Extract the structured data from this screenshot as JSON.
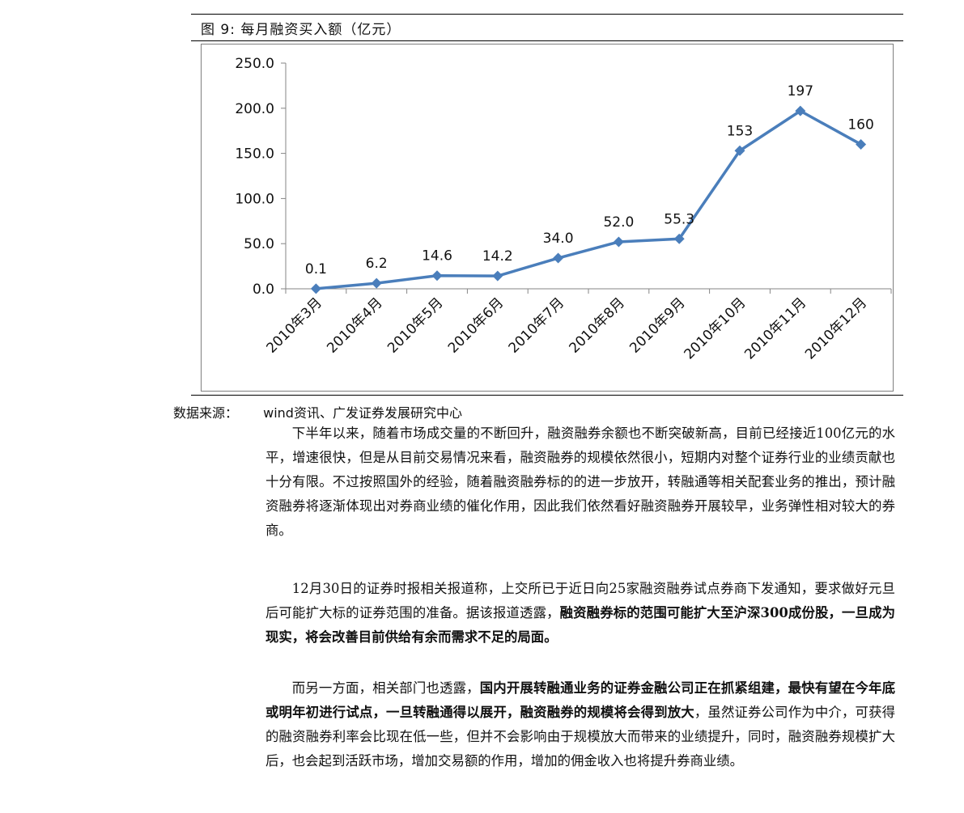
{
  "figure": {
    "title": "图 9:  每月融资买入额（亿元）",
    "source_label": "数据来源：",
    "source_text": "wind资讯、广发证券发展研究中心"
  },
  "chart_data": {
    "type": "line",
    "title": "",
    "xlabel": "",
    "ylabel": "",
    "categories": [
      "2010年3月",
      "2010年4月",
      "2010年5月",
      "2010年6月",
      "2010年7月",
      "2010年8月",
      "2010年9月",
      "2010年10月",
      "2010年11月",
      "2010年12月"
    ],
    "series": [
      {
        "values": [
          0.1,
          6.2,
          14.6,
          14.2,
          34.0,
          52.0,
          55.3,
          153,
          197,
          160
        ],
        "data_labels": [
          "0.1",
          "6.2",
          "14.6",
          "14.2",
          "34.0",
          "52.0",
          "55.3",
          "153",
          "197",
          "160"
        ],
        "color": "#4a7ebb"
      }
    ],
    "ylim": [
      0,
      250
    ],
    "yticks": [
      "0.0",
      "50.0",
      "100.0",
      "150.0",
      "200.0",
      "250.0"
    ],
    "grid": false,
    "legend": "none",
    "marker": "diamond"
  },
  "paragraphs": [
    {
      "segments": [
        {
          "text": "下半年以来，随着市场成交量的不断回升，融资融券余额也不断突破新高，目前已经接近100亿元的水平，增速很快，但是从目前交易情况来看，融资融券的规模依然很小，短期内对整个证券行业的业绩贡献也十分有限。不过按照国外的经验，随着融资融券标的的进一步放开，转融通等相关配套业务的推出，预计融资融券将逐渐体现出对券商业绩的催化作用，因此我们依然看好融资融券开展较早，业务弹性相对较大的券商。",
          "bold": false
        }
      ]
    },
    {
      "segments": [
        {
          "text": "12月30日的证券时报相关报道称，上交所已于近日向25家融资融券试点券商下发通知，要求做好元旦后可能扩大标的证券范围的准备。据该报道透露，",
          "bold": false
        },
        {
          "text": "融资融券标的范围可能扩大至沪深300成份股，一旦成为现实，将会改善目前供给有余而需求不足的局面。",
          "bold": true
        }
      ]
    },
    {
      "segments": [
        {
          "text": "而另一方面，相关部门也透露，",
          "bold": false
        },
        {
          "text": "国内开展转融通业务的证券金融公司正在抓紧组建，最快有望在今年底或明年初进行试点，一旦转融通得以展开，融资融券的规模将会得到放大",
          "bold": true
        },
        {
          "text": "，虽然证券公司作为中介，可获得的融资融券利率会比现在低一些，但并不会影响由于规模放大而带来的业绩提升，同时，融资融券规模扩大后，也会起到活跃市场，增加交易额的作用，增加的佣金收入也将提升券商业绩。",
          "bold": false
        }
      ]
    }
  ]
}
